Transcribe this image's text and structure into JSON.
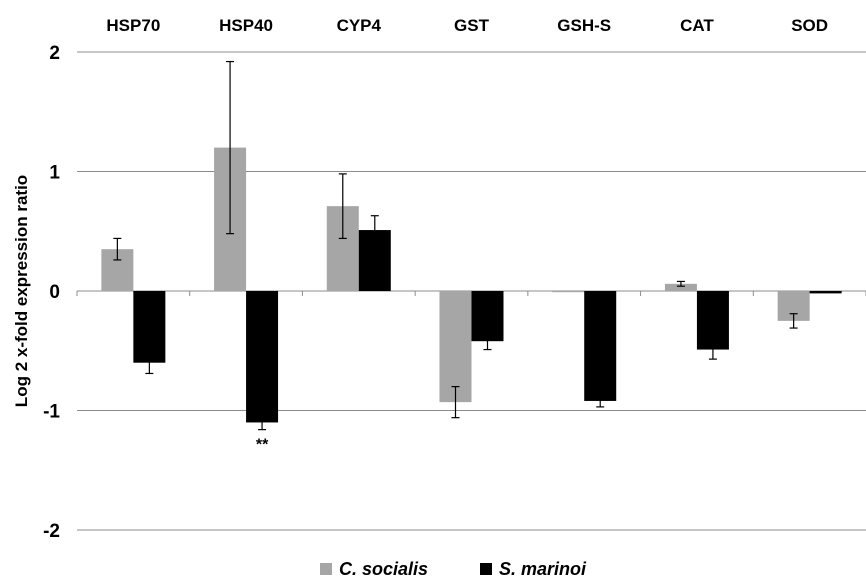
{
  "chart_data": {
    "type": "bar",
    "categories": [
      "HSP70",
      "HSP40",
      "CYP4",
      "GST",
      "GSH-S",
      "CAT",
      "SOD"
    ],
    "series": [
      {
        "name": "C. socialis",
        "color": "#a6a6a6",
        "values": [
          0.35,
          1.2,
          0.71,
          -0.93,
          -0.01,
          0.06,
          -0.25
        ],
        "errors": [
          0.09,
          0.72,
          0.27,
          0.13,
          0.0,
          0.02,
          0.06
        ]
      },
      {
        "name": "S. marinoi",
        "color": "#000000",
        "values": [
          -0.6,
          -1.1,
          0.51,
          -0.42,
          -0.92,
          -0.49,
          -0.02
        ],
        "errors": [
          0.09,
          0.06,
          0.12,
          0.07,
          0.05,
          0.08,
          0.0
        ]
      }
    ],
    "title": "",
    "xlabel": "",
    "ylabel": "Log 2 x-fold expression ratio",
    "ylim": [
      -2,
      2
    ],
    "yticks": [
      "2",
      "1",
      "0",
      "-1",
      "-2"
    ],
    "annotations": [
      {
        "category": "HSP40",
        "series": "S. marinoi",
        "text": "**"
      }
    ],
    "grid": "horizontal",
    "legend_position": "bottom"
  }
}
